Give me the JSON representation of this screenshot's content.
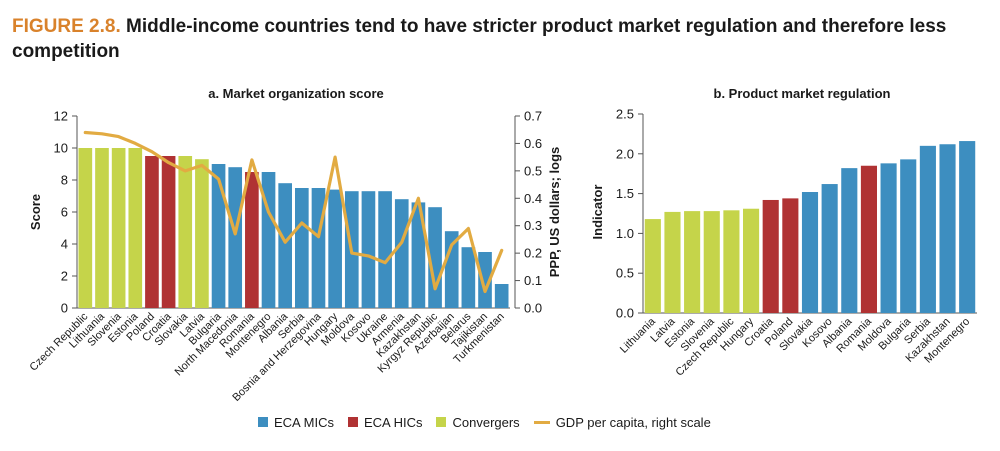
{
  "figure": {
    "label": "FIGURE 2.8.",
    "title": "Middle-income countries tend to have stricter product market regulation and therefore less competition"
  },
  "colors": {
    "ECA MICs": "#3d8ec0",
    "ECA HICs": "#b03233",
    "Convergers": "#c5d44a",
    "GDP line": "#e2ab42",
    "axis": "#555555"
  },
  "legend": {
    "items": [
      {
        "label": "ECA MICs",
        "key": "ECA MICs",
        "kind": "box"
      },
      {
        "label": "ECA HICs",
        "key": "ECA HICs",
        "kind": "box"
      },
      {
        "label": "Convergers",
        "key": "Convergers",
        "kind": "box"
      },
      {
        "label": "GDP per capita, right scale",
        "key": "GDP line",
        "kind": "line"
      }
    ]
  },
  "chart_data": [
    {
      "type": "bar",
      "title": "a. Market organization score",
      "ylabel": "Score",
      "y2label": "PPP, US dollars; logs",
      "ylim": [
        0,
        12
      ],
      "yticks": [
        0,
        2,
        4,
        6,
        8,
        10,
        12
      ],
      "y2lim": [
        0.0,
        0.7
      ],
      "y2ticks": [
        "0.0",
        "0.1",
        "0.2",
        "0.3",
        "0.4",
        "0.5",
        "0.6",
        "0.7"
      ],
      "categories": [
        "Czech Republic",
        "Lithuania",
        "Slovenia",
        "Estonia",
        "Poland",
        "Croatia",
        "Slovakia",
        "Latvia",
        "Bulgaria",
        "North Macedonia",
        "Romania",
        "Montenegro",
        "Albania",
        "Serbia",
        "Bosnia and Herzegovina",
        "Hungary",
        "Moldova",
        "Kosovo",
        "Ukraine",
        "Armenia",
        "Kazakhstan",
        "Kyrgyz Republic",
        "Azerbaijan",
        "Belarus",
        "Tajikistan",
        "Turkmenistan"
      ],
      "groups": [
        "Convergers",
        "Convergers",
        "Convergers",
        "Convergers",
        "ECA HICs",
        "ECA HICs",
        "Convergers",
        "Convergers",
        "ECA MICs",
        "ECA MICs",
        "ECA HICs",
        "ECA MICs",
        "ECA MICs",
        "ECA MICs",
        "ECA MICs",
        "ECA MICs",
        "ECA MICs",
        "ECA MICs",
        "ECA MICs",
        "ECA MICs",
        "ECA MICs",
        "ECA MICs",
        "ECA MICs",
        "ECA MICs",
        "ECA MICs",
        "ECA MICs"
      ],
      "values": [
        10,
        10,
        10,
        10,
        9.5,
        9.5,
        9.5,
        9.3,
        9.0,
        8.8,
        8.5,
        8.5,
        7.8,
        7.5,
        7.5,
        7.4,
        7.3,
        7.3,
        7.3,
        6.8,
        6.6,
        6.3,
        4.8,
        3.8,
        3.5,
        1.5
      ],
      "line_series": {
        "name": "GDP per capita, right scale",
        "values": [
          0.64,
          0.635,
          0.625,
          0.6,
          0.57,
          0.53,
          0.5,
          0.52,
          0.47,
          0.27,
          0.54,
          0.35,
          0.24,
          0.31,
          0.26,
          0.55,
          0.2,
          0.19,
          0.165,
          0.24,
          0.4,
          0.07,
          0.23,
          0.29,
          0.06,
          0.21
        ]
      }
    },
    {
      "type": "bar",
      "title": "b. Product market regulation",
      "ylabel": "Indicator",
      "ylim": [
        0.0,
        2.5
      ],
      "yticks": [
        "0.0",
        "0.5",
        "1.0",
        "1.5",
        "2.0",
        "2.5"
      ],
      "categories": [
        "Lithuania",
        "Latvia",
        "Estonia",
        "Slovenia",
        "Czech Republic",
        "Hungary",
        "Croatia",
        "Poland",
        "Slovakia",
        "Kosovo",
        "Albania",
        "Romania",
        "Moldova",
        "Bulgaria",
        "Serbia",
        "Kazakhstan",
        "Montenegro"
      ],
      "groups": [
        "Convergers",
        "Convergers",
        "Convergers",
        "Convergers",
        "Convergers",
        "Convergers",
        "ECA HICs",
        "ECA HICs",
        "ECA MICs",
        "ECA MICs",
        "ECA MICs",
        "ECA HICs",
        "ECA MICs",
        "ECA MICs",
        "ECA MICs",
        "ECA MICs",
        "ECA MICs"
      ],
      "values": [
        1.18,
        1.27,
        1.28,
        1.28,
        1.29,
        1.31,
        1.42,
        1.44,
        1.52,
        1.62,
        1.82,
        1.85,
        1.88,
        1.93,
        2.1,
        2.12,
        2.16
      ]
    }
  ]
}
